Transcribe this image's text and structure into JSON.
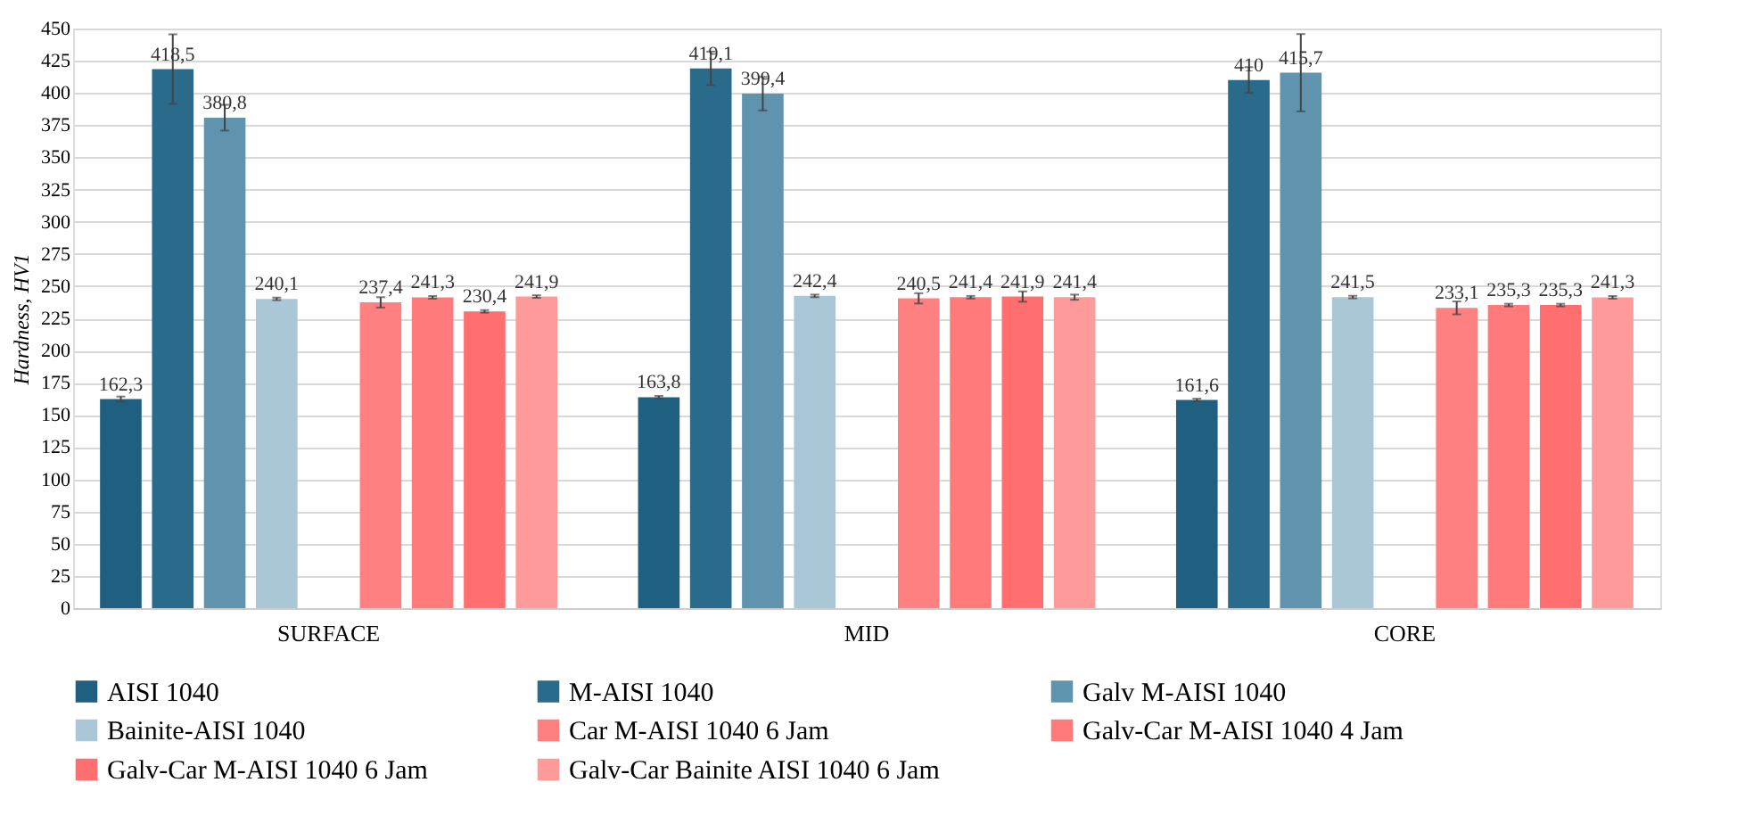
{
  "chart_data": {
    "type": "bar",
    "ylabel": "Hardness, HV1",
    "categories": [
      "SURFACE",
      "MID",
      "CORE"
    ],
    "series": [
      {
        "name": "AISI 1040",
        "color": "#1f5f7f",
        "values": [
          162.3,
          163.8,
          161.6
        ],
        "errors": [
          2,
          1,
          1
        ],
        "value_labels": [
          "162,3",
          "163,8",
          "161,6"
        ]
      },
      {
        "name": "M-AISI 1040",
        "color": "#2a6a8a",
        "values": [
          418.5,
          419.1,
          410
        ],
        "errors": [
          27,
          13,
          10
        ],
        "value_labels": [
          "418,5",
          "419,1",
          "410"
        ]
      },
      {
        "name": "Galv M-AISI 1040",
        "color": "#5f93ae",
        "values": [
          380.8,
          399.4,
          415.7
        ],
        "errors": [
          10,
          13,
          30
        ],
        "value_labels": [
          "380,8",
          "399,4",
          "415,7"
        ]
      },
      {
        "name": "Bainite-AISI 1040",
        "color": "#a9c7d6",
        "values": [
          240.1,
          242.4,
          241.5
        ],
        "errors": [
          1,
          1,
          1
        ],
        "value_labels": [
          "240,1",
          "242,4",
          "241,5"
        ]
      },
      {
        "name": "Car M-AISI 1040 6 Jam",
        "color": "#ff8080",
        "values": [
          237.4,
          240.5,
          233.1
        ],
        "errors": [
          4,
          4,
          5
        ],
        "value_labels": [
          "237,4",
          "240,5",
          "233,1"
        ]
      },
      {
        "name": "Galv-Car M-AISI 1040 4 Jam",
        "color": "#ff7a7a",
        "values": [
          241.3,
          241.4,
          235.3
        ],
        "errors": [
          1,
          1,
          1
        ],
        "value_labels": [
          "241,3",
          "241,4",
          "235,3"
        ]
      },
      {
        "name": "Galv-Car M-AISI 1040 6 Jam",
        "color": "#ff6f6f",
        "values": [
          230.4,
          241.9,
          235.3
        ],
        "errors": [
          1,
          4,
          1
        ],
        "value_labels": [
          "230,4",
          "241,9",
          "235,3"
        ]
      },
      {
        "name": "Galv-Car Bainite AISI 1040 6 Jam",
        "color": "#ff9a9a",
        "values": [
          241.9,
          241.4,
          241.3
        ],
        "errors": [
          1,
          2,
          1
        ],
        "value_labels": [
          "241,9",
          "241,4",
          "241,3"
        ]
      }
    ],
    "ylim": [
      0,
      450
    ],
    "yticks": [
      0,
      25,
      50,
      75,
      100,
      125,
      150,
      175,
      200,
      225,
      250,
      275,
      300,
      325,
      350,
      375,
      400,
      425,
      450
    ],
    "grid": "y",
    "legend": "bottom"
  }
}
